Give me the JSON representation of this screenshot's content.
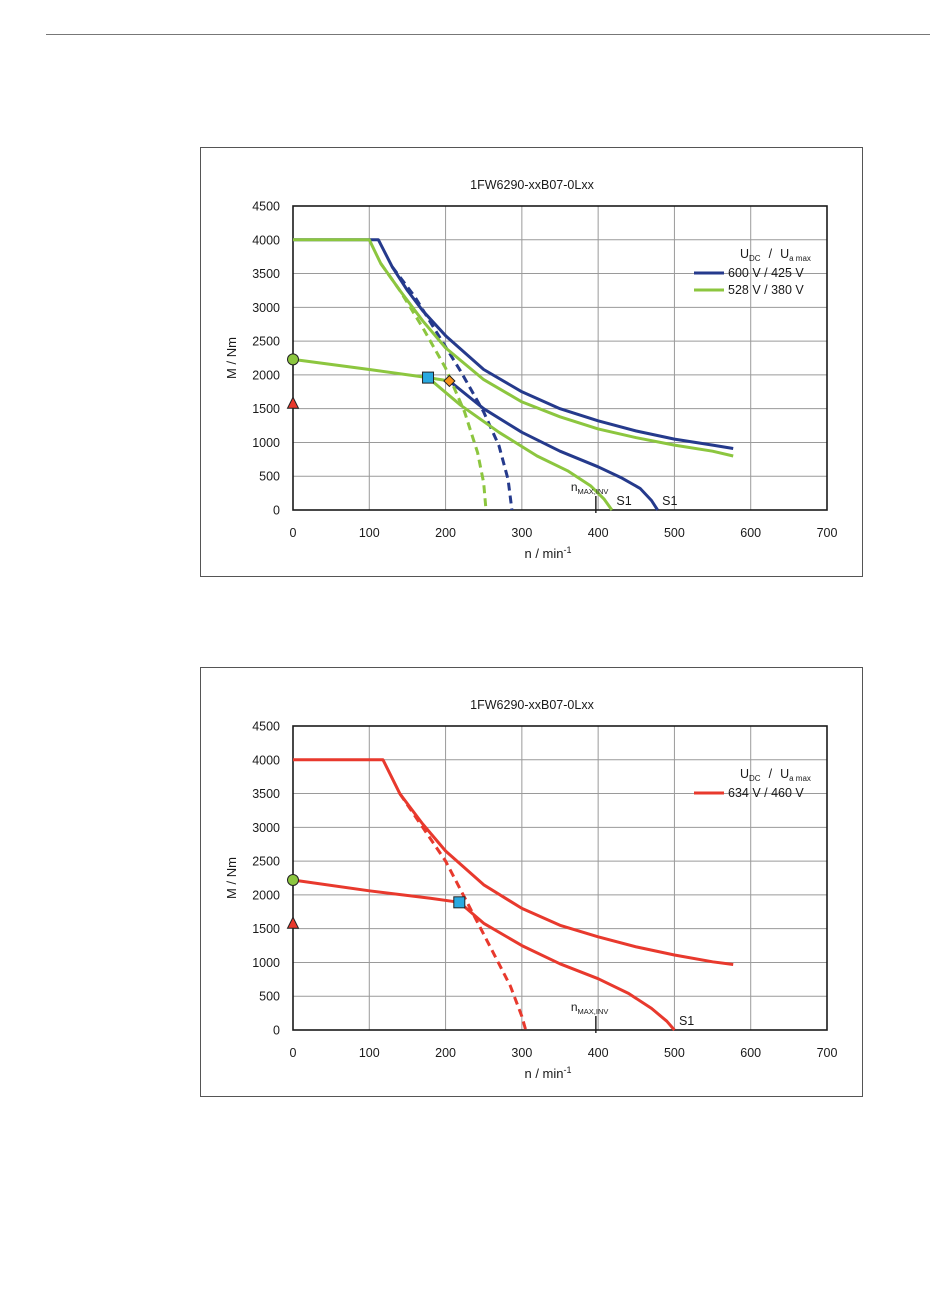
{
  "chart_data": [
    {
      "type": "line",
      "title": "1FW6290-xxB07-0Lxx",
      "xlabel": "n / min",
      "xlabel_sup": "-1",
      "ylabel": "M / Nm",
      "xlim": [
        0,
        700
      ],
      "ylim": [
        0,
        4500
      ],
      "xticks": [
        "0",
        "100",
        "200",
        "300",
        "400",
        "500",
        "600",
        "700"
      ],
      "yticks": [
        "0",
        "500",
        "1000",
        "1500",
        "2000",
        "2500",
        "3000",
        "3500",
        "4000",
        "4500"
      ],
      "grid": true,
      "legend_position": "top-right",
      "legend_title": {
        "main1": "U",
        "sub1": "DC",
        "sep": "/",
        "main2": "U",
        "sub2": "a max"
      },
      "series": [
        {
          "name": "600 V / 425 V",
          "color": "#253a8c",
          "curves": [
            {
              "style": "solid",
              "points": [
                [
                  0,
                  4000
                ],
                [
                  112,
                  4000
                ],
                [
                  130,
                  3600
                ],
                [
                  150,
                  3250
                ],
                [
                  170,
                  2950
                ],
                [
                  200,
                  2580
                ],
                [
                  250,
                  2080
                ],
                [
                  300,
                  1750
                ],
                [
                  350,
                  1500
                ],
                [
                  400,
                  1320
                ],
                [
                  450,
                  1170
                ],
                [
                  500,
                  1050
                ],
                [
                  550,
                  960
                ],
                [
                  577,
                  910
                ]
              ]
            },
            {
              "style": "solid",
              "points": [
                [
                  205,
                  1910
                ],
                [
                  250,
                  1500
                ],
                [
                  300,
                  1150
                ],
                [
                  350,
                  870
                ],
                [
                  400,
                  640
                ],
                [
                  430,
                  480
                ],
                [
                  455,
                  320
                ],
                [
                  470,
                  140
                ],
                [
                  478,
                  0
                ]
              ]
            },
            {
              "style": "dashed",
              "points": [
                [
                  130,
                  3600
                ],
                [
                  160,
                  3150
                ],
                [
                  190,
                  2600
                ],
                [
                  220,
                  2050
                ],
                [
                  250,
                  1450
                ],
                [
                  270,
                  950
                ],
                [
                  282,
                  450
                ],
                [
                  287,
                  0
                ]
              ]
            }
          ]
        },
        {
          "name": "528 V / 380 V",
          "color": "#8cc63f",
          "curves": [
            {
              "style": "solid",
              "points": [
                [
                  0,
                  4000
                ],
                [
                  100,
                  4000
                ],
                [
                  115,
                  3650
                ],
                [
                  140,
                  3250
                ],
                [
                  170,
                  2800
                ],
                [
                  200,
                  2400
                ],
                [
                  250,
                  1930
                ],
                [
                  300,
                  1600
                ],
                [
                  350,
                  1380
                ],
                [
                  400,
                  1200
                ],
                [
                  450,
                  1070
                ],
                [
                  500,
                  960
                ],
                [
                  550,
                  870
                ],
                [
                  577,
                  800
                ]
              ]
            },
            {
              "style": "solid",
              "points": [
                [
                  0,
                  2230
                ],
                [
                  100,
                  2080
                ],
                [
                  177,
                  1960
                ],
                [
                  205,
                  1910
                ]
              ]
            },
            {
              "style": "solid",
              "points": [
                [
                  177,
                  1960
                ],
                [
                  220,
                  1550
                ],
                [
                  270,
                  1150
                ],
                [
                  320,
                  800
                ],
                [
                  360,
                  580
                ],
                [
                  390,
                  360
                ],
                [
                  408,
                  160
                ],
                [
                  418,
                  0
                ]
              ]
            },
            {
              "style": "dashed",
              "points": [
                [
                  115,
                  3650
                ],
                [
                  140,
                  3250
                ],
                [
                  170,
                  2700
                ],
                [
                  200,
                  2100
                ],
                [
                  225,
                  1450
                ],
                [
                  242,
                  850
                ],
                [
                  250,
                  400
                ],
                [
                  253,
                  0
                ]
              ]
            }
          ]
        }
      ],
      "markers": [
        {
          "kind": "circle",
          "x": 0,
          "y": 2230,
          "color": "#8cc63f"
        },
        {
          "kind": "triangle",
          "x": 0,
          "y": 1580,
          "color": "#e8392d"
        },
        {
          "kind": "square",
          "x": 177,
          "y": 1960,
          "color": "#29a9e0"
        },
        {
          "kind": "diamond",
          "x": 205,
          "y": 1910,
          "color": "#f7941d"
        }
      ],
      "annotations": [
        {
          "text": "S1",
          "x": 420,
          "y": 0
        },
        {
          "text": "S1",
          "x": 480,
          "y": 0
        },
        {
          "main": "n",
          "sub": "MAX,INV",
          "x": 397
        }
      ]
    },
    {
      "type": "line",
      "title": "1FW6290-xxB07-0Lxx",
      "xlabel": "n / min",
      "xlabel_sup": "-1",
      "ylabel": "M / Nm",
      "xlim": [
        0,
        700
      ],
      "ylim": [
        0,
        4500
      ],
      "xticks": [
        "0",
        "100",
        "200",
        "300",
        "400",
        "500",
        "600",
        "700"
      ],
      "yticks": [
        "0",
        "500",
        "1000",
        "1500",
        "2000",
        "2500",
        "3000",
        "3500",
        "4000",
        "4500"
      ],
      "grid": true,
      "legend_position": "top-right",
      "legend_title": {
        "main1": "U",
        "sub1": "DC",
        "sep": "/",
        "main2": "U",
        "sub2": "a max"
      },
      "series": [
        {
          "name": "634 V / 460 V",
          "color": "#e8392d",
          "curves": [
            {
              "style": "solid",
              "points": [
                [
                  0,
                  4000
                ],
                [
                  118,
                  4000
                ],
                [
                  140,
                  3500
                ],
                [
                  170,
                  3050
                ],
                [
                  200,
                  2650
                ],
                [
                  250,
                  2150
                ],
                [
                  300,
                  1800
                ],
                [
                  350,
                  1550
                ],
                [
                  400,
                  1380
                ],
                [
                  450,
                  1230
                ],
                [
                  500,
                  1110
                ],
                [
                  550,
                  1010
                ],
                [
                  577,
                  970
                ]
              ]
            },
            {
              "style": "solid",
              "points": [
                [
                  0,
                  2220
                ],
                [
                  100,
                  2060
                ],
                [
                  180,
                  1950
                ],
                [
                  218,
                  1890
                ]
              ]
            },
            {
              "style": "solid",
              "points": [
                [
                  218,
                  1890
                ],
                [
                  250,
                  1580
                ],
                [
                  300,
                  1250
                ],
                [
                  350,
                  980
                ],
                [
                  400,
                  760
                ],
                [
                  440,
                  540
                ],
                [
                  470,
                  320
                ],
                [
                  490,
                  130
                ],
                [
                  500,
                  0
                ]
              ]
            },
            {
              "style": "dashed",
              "points": [
                [
                  140,
                  3500
                ],
                [
                  170,
                  3000
                ],
                [
                  200,
                  2500
                ],
                [
                  230,
                  1850
                ],
                [
                  260,
                  1200
                ],
                [
                  285,
                  650
                ],
                [
                  300,
                  200
                ],
                [
                  305,
                  0
                ]
              ]
            }
          ]
        }
      ],
      "markers": [
        {
          "kind": "circle",
          "x": 0,
          "y": 2220,
          "color": "#8cc63f"
        },
        {
          "kind": "triangle",
          "x": 0,
          "y": 1580,
          "color": "#e8392d"
        },
        {
          "kind": "square",
          "x": 218,
          "y": 1890,
          "color": "#29a9e0"
        }
      ],
      "annotations": [
        {
          "text": "S1",
          "x": 502,
          "y": 0
        },
        {
          "main": "n",
          "sub": "MAX,INV",
          "x": 397
        }
      ]
    }
  ]
}
